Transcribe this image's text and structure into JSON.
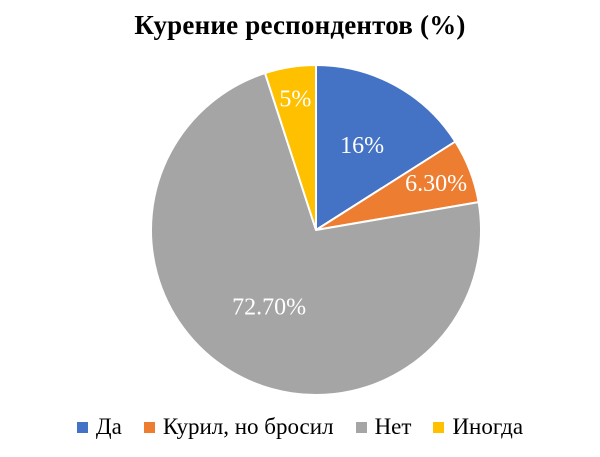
{
  "chart_data": {
    "type": "pie",
    "title": "Курение респондентов (%)",
    "slices": [
      {
        "name": "Да",
        "value": 16,
        "label": "16%",
        "color": "#4472C4"
      },
      {
        "name": "Курил, но бросил",
        "value": 6.3,
        "label": "6.30%",
        "color": "#ED7D31"
      },
      {
        "name": "Нет",
        "value": 72.7,
        "label": "72.70%",
        "color": "#A5A5A5"
      },
      {
        "name": "Иногда",
        "value": 5,
        "label": "5%",
        "color": "#FFC000"
      }
    ],
    "legend_position": "bottom",
    "start": "top",
    "direction": "clockwise"
  }
}
